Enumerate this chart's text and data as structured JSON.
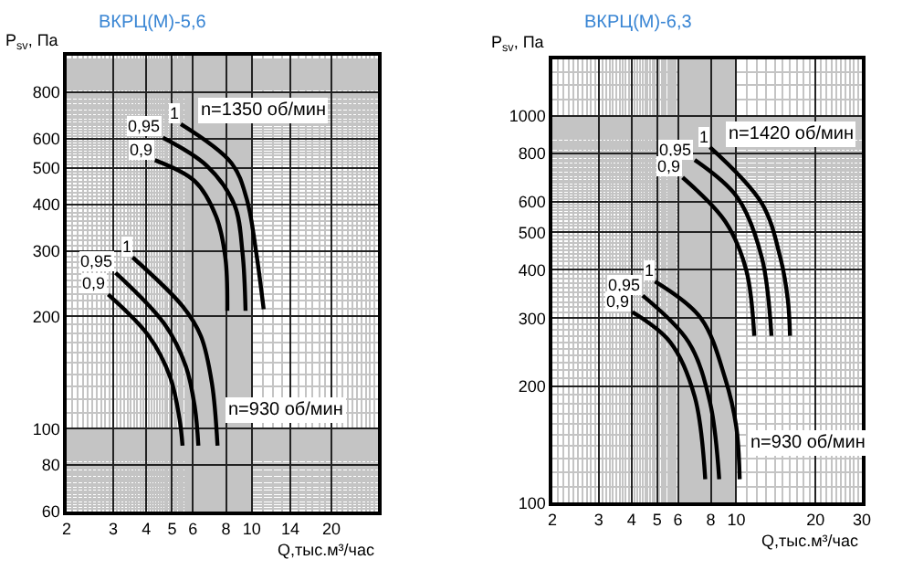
{
  "chart_data": [
    {
      "type": "line",
      "title": "ВКРЦ(М)-5,6",
      "xlabel": "Q,тыс.м³/час",
      "ylabel": "P$_{sv}$, Па",
      "log": "xy",
      "grid": true,
      "xlim": [
        2,
        30
      ],
      "ylim": [
        60,
        1000
      ],
      "xticks": [
        2,
        3,
        4,
        5,
        6,
        8,
        10,
        14,
        20
      ],
      "yticks": [
        60,
        80,
        100,
        200,
        300,
        400,
        500,
        600,
        800
      ],
      "series": [
        {
          "name": "1",
          "color": "#000000",
          "x": [
            5.4,
            8.4,
            9.58,
            10.4,
            11.1
          ],
          "values": [
            656,
            515,
            413,
            297,
            209
          ]
        },
        {
          "name": "0,95",
          "color": "#000000",
          "x": [
            4.62,
            6.79,
            8.61,
            9.23,
            9.48
          ],
          "values": [
            603,
            506,
            398,
            297,
            207
          ]
        },
        {
          "name": "0,9",
          "color": "#000000",
          "x": [
            4.31,
            6.1,
            7.35,
            7.96,
            8.09
          ],
          "values": [
            525,
            461,
            370,
            286,
            207
          ]
        },
        {
          "name": "1",
          "color": "#000000",
          "x": [
            3.55,
            5.48,
            6.43,
            7.08,
            7.43
          ],
          "values": [
            288,
            213,
            177,
            132,
            90
          ]
        },
        {
          "name": "0,95",
          "color": "#000000",
          "x": [
            3.06,
            4.68,
            5.64,
            6.1,
            6.29
          ],
          "values": [
            262,
            191,
            147,
            114,
            90
          ]
        },
        {
          "name": "0,9",
          "color": "#000000",
          "x": [
            2.87,
            4.09,
            4.93,
            5.34,
            5.48
          ],
          "values": [
            229,
            177,
            137,
            106,
            90
          ]
        }
      ],
      "annotations": [
        "n=1350 об/мин",
        "n=930 об/мин"
      ]
    },
    {
      "type": "line",
      "title": "ВКРЦ(М)-6,3",
      "xlabel": "Q,тыс.м³/час",
      "ylabel": "P$_{sv}$, Па",
      "log": "xy",
      "grid": true,
      "xlim": [
        2,
        30
      ],
      "ylim": [
        100,
        1400
      ],
      "xticks": [
        2,
        3,
        4,
        5,
        6,
        8,
        10,
        20,
        30
      ],
      "yticks": [
        100,
        200,
        300,
        400,
        500,
        600,
        800,
        1000
      ],
      "series": [
        {
          "name": "1",
          "color": "#000000",
          "x": [
            7.94,
            12.5,
            14.7,
            15.7,
            16.0
          ],
          "values": [
            830,
            594,
            430,
            334,
            270
          ]
        },
        {
          "name": "0,95",
          "color": "#000000",
          "x": [
            6.95,
            10.1,
            12.5,
            13.6
          ],
          "values": [
            769,
            615,
            430,
            270
          ]
        },
        {
          "name": "0,9",
          "color": "#000000",
          "x": [
            6.25,
            9.08,
            10.9,
            11.7
          ],
          "values": [
            693,
            533,
            400,
            270
          ]
        },
        {
          "name": "1",
          "color": "#000000",
          "x": [
            4.91,
            7.33,
            9.08,
            10.0,
            10.3
          ],
          "values": [
            373,
            300,
            209,
            157,
            115
          ]
        },
        {
          "name": "0,95",
          "color": "#000000",
          "x": [
            4.41,
            6.59,
            7.94,
            8.61
          ],
          "values": [
            343,
            260,
            182,
            115
          ]
        },
        {
          "name": "0,9",
          "color": "#000000",
          "x": [
            4.03,
            5.61,
            6.95,
            7.62
          ],
          "values": [
            311,
            260,
            188,
            115
          ]
        }
      ],
      "annotations": [
        "n=1420 об/мин",
        "n=930 об/мин"
      ]
    }
  ]
}
